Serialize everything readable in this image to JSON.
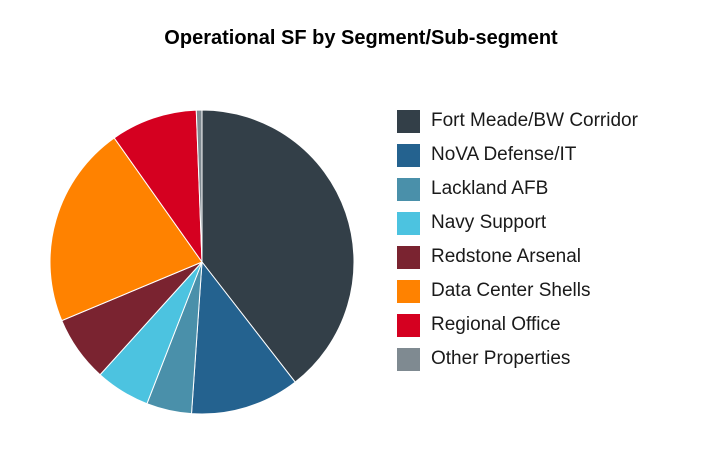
{
  "chart_data": {
    "type": "pie",
    "title": "Operational SF by Segment/Sub-segment",
    "legend_position": "right",
    "slices": [
      {
        "label": "Fort Meade/BW Corridor",
        "value": 39.5,
        "color": "#333f48"
      },
      {
        "label": "NoVA Defense/IT",
        "value": 11.6,
        "color": "#24628f"
      },
      {
        "label": "Lackland AFB",
        "value": 4.8,
        "color": "#4a90aa"
      },
      {
        "label": "Navy Support",
        "value": 5.8,
        "color": "#4cc3e0"
      },
      {
        "label": "Redstone Arsenal",
        "value": 7.0,
        "color": "#7a2330"
      },
      {
        "label": "Data Center Shells",
        "value": 21.5,
        "color": "#ff8200"
      },
      {
        "label": "Regional Office",
        "value": 9.2,
        "color": "#d50020"
      },
      {
        "label": "Other Properties",
        "value": 0.6,
        "color": "#7f8a91"
      }
    ]
  }
}
